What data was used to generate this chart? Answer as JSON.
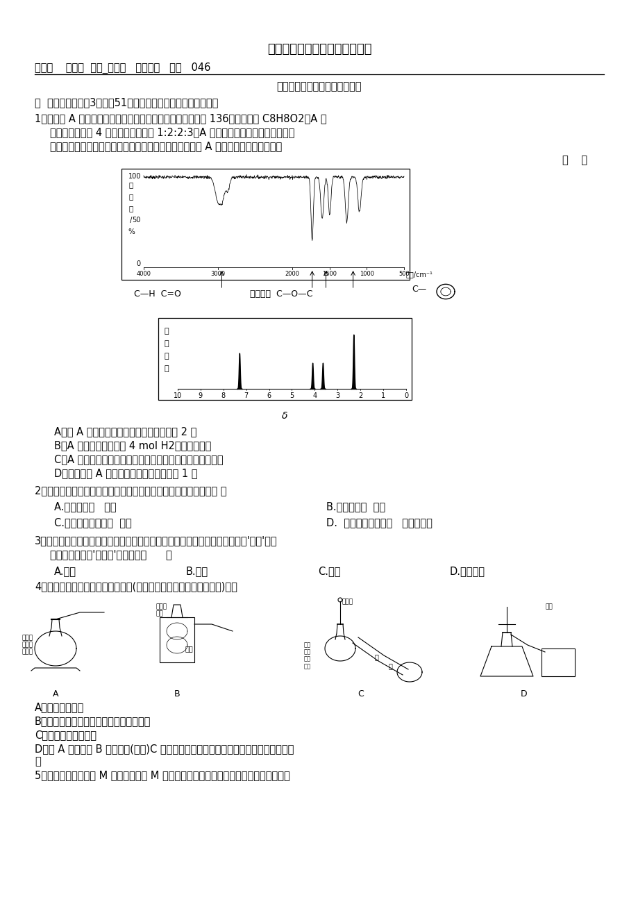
{
  "title": "人教版化学学科《选修五》模块",
  "subtitle_line": "主备人    赵中明  审核_李怀英   使用时间   编号   046",
  "subtitle2": "选修五有机化学基础复习备考一",
  "section1": "一  选择题（每小题3分，共51分；每小题只有一个正确答案。）",
  "q1_text1": "1、化合物 A 经李比希法和质谱法分析得知其相对分子质量为 136，分子式为 C8H8O2。A 的",
  "q1_text2": "核磁共振氢谱有 4 个峰且面积之比为 1:2:2:3，A 分子中只含一个苯环且苯环上只",
  "q1_text3": "有一个取代基，其红外光谱与核磁共振氢谱如下图。关于 A 的下列说法中，正确的是",
  "q1_paren": "（    ）",
  "q1_A": "A．与 A 属于同类化合物的同分异构体只有 2 种",
  "q1_B": "B．A 在一定条件下可与 4 mol H2发生加成反应",
  "q1_C": "C．A 分子属于酯类化合物，在一定条件下不能发生水解反应",
  "q1_D": "D．符合题中 A 分子结构特征的有机物只有 1 种",
  "q2_text": "2、可以用来鉴别己烯、甲苯、乙酸乙酯、苯酚溶液的一组试剂是（ ）",
  "q2_A": "A.氯化铁溶液   溴水",
  "q2_B": "B.碳酸钠溶液  溴水",
  "q2_C": "C.酸性高锰酸钾溶液  溴水",
  "q2_D": "D.  酸性高锰酸钾溶液   氯化铁溶液",
  "q3_text1": "3、有机物大多易挥发，因此许多有机物保存时为避免挥发损失，可加一层水即'水封'，下",
  "q3_text2": "列有机物可以用'水封法'保存的是（      ）",
  "q3_A": "A.乙醇",
  "q3_B": "B.氯仿",
  "q3_C": "C.乙醛",
  "q3_D": "D.乙酸乙酯",
  "q4_text": "4、下列装置或操作能达到实验目的(必要的夹持装置及石棉网已省略)的是",
  "q4_A_desc": "A．实验室制乙烯",
  "q4_B_desc": "B．实验室制乙炔并验证乙炔发生氧化反应",
  "q4_C_desc": "C．实验室中分馏石油",
  "q4_D_desc": "D．若 A 为稀硫酸 B 为碳酸钠(粉状)C 为苯酚钠溶液，验证稀硫酸、苯酚、碳酸酸性的强",
  "q4_D_desc2": "弱",
  "q5_text": "5、聚乙炔衍生物分子 M 的结构简式及 M 在稀硫酸作用下的水解反应如图所示。下列有关",
  "background_color": "#ffffff",
  "text_color": "#000000",
  "font_size": 10.5
}
